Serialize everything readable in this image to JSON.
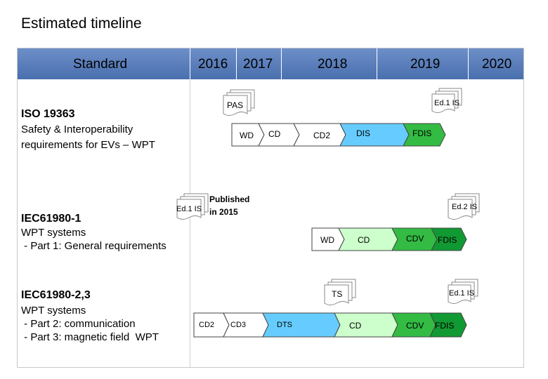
{
  "title": "Estimated timeline",
  "header": {
    "standard": "Standard",
    "years": [
      "2016",
      "2017",
      "2018",
      "2019",
      "2020"
    ]
  },
  "standards": [
    {
      "name": "ISO 19363",
      "desc_lines": [
        "Safety & Interoperability",
        "requirements for EVs – WPT"
      ],
      "doc_labels": [
        "PAS",
        "Ed.1 IS"
      ],
      "stages": [
        "WD",
        "CD",
        "CD2",
        "DIS",
        "FDIS"
      ]
    },
    {
      "name": "IEC61980-1",
      "desc_lines": [
        "WPT systems",
        " - Part 1: General requirements"
      ],
      "doc_labels": [
        "Ed.1 IS",
        "Ed.2 IS"
      ],
      "note_lines": [
        "Published",
        "in 2015"
      ],
      "stages": [
        "WD",
        "CD",
        "CDV",
        "FDIS"
      ]
    },
    {
      "name": "IEC61980-2,3",
      "desc_lines": [
        "WPT systems",
        " - Part 2: communication",
        " - Part 3: magnetic field  WPT"
      ],
      "doc_labels": [
        "TS",
        "Ed.1 IS"
      ],
      "stages": [
        "CD2",
        "CD3",
        "DTS",
        "CD",
        "CDV",
        "FDIS"
      ]
    }
  ],
  "colors": {
    "header": "#5b7fbf",
    "light_blue": "#66ccff",
    "light_green": "#ccffcc",
    "green": "#33bb44",
    "dark_green": "#119933"
  }
}
